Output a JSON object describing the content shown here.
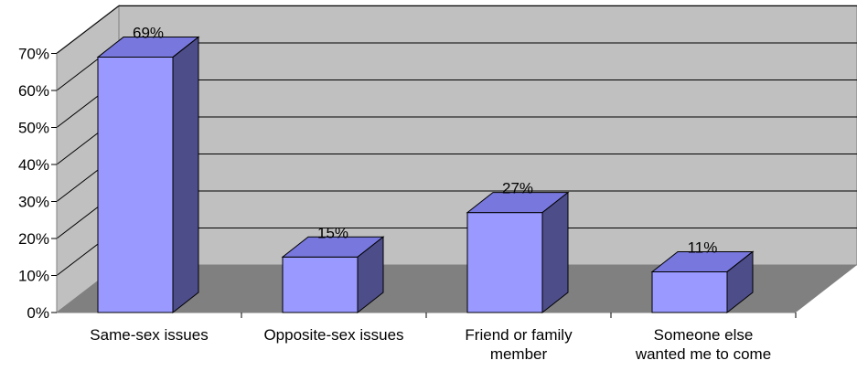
{
  "chart_data": {
    "type": "bar",
    "style": "3d-column",
    "categories": [
      [
        "Same-sex issues"
      ],
      [
        "Opposite-sex issues"
      ],
      [
        "Friend or family",
        "member"
      ],
      [
        "Someone else",
        "wanted me to come"
      ]
    ],
    "values": [
      69,
      15,
      27,
      11
    ],
    "data_labels": [
      "69%",
      "15%",
      "27%",
      "11%"
    ],
    "y_ticks": [
      "0%",
      "10%",
      "20%",
      "30%",
      "40%",
      "50%",
      "60%",
      "70%"
    ],
    "ylim": [
      0,
      70
    ],
    "grid": true,
    "legend": "none",
    "title": "",
    "xlabel": "",
    "ylabel": "",
    "colors": {
      "bar_front": "#9999ff",
      "bar_top": "#7777dd",
      "bar_side": "#4d4d8a",
      "back_wall": "#c0c0c0",
      "floor": "#808080",
      "gridline": "#000000"
    }
  }
}
